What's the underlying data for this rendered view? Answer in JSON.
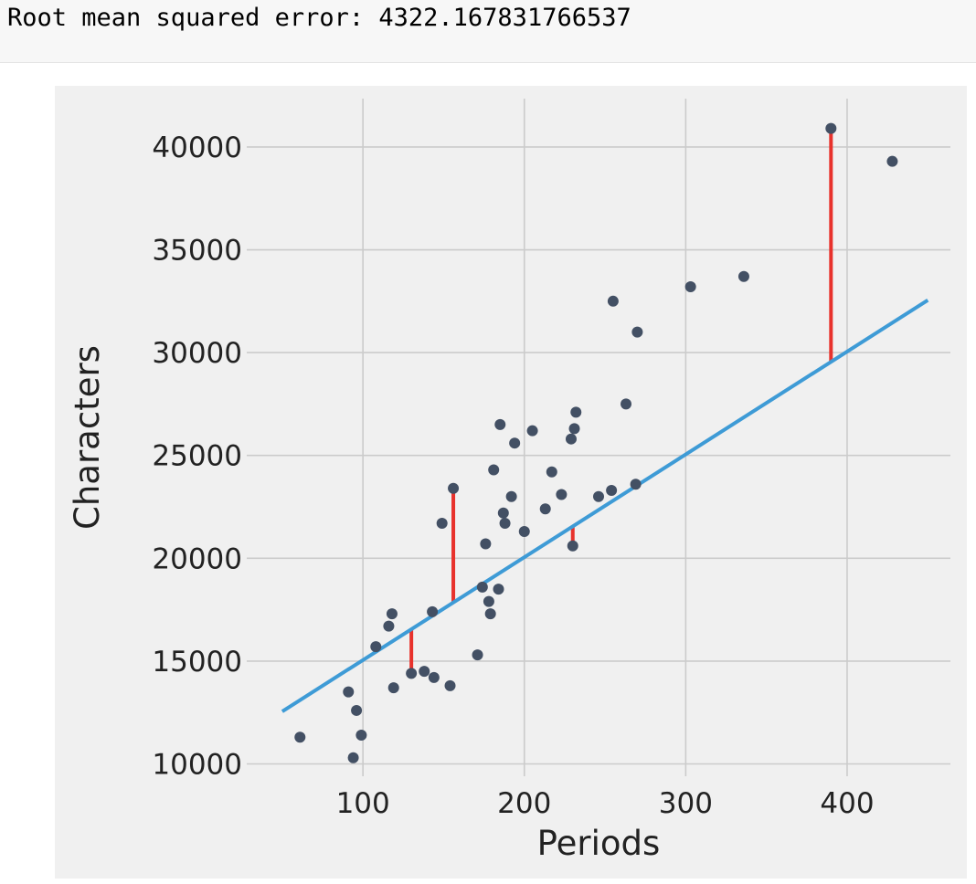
{
  "output": {
    "text": "Root mean squared error: 4322.167831766537"
  },
  "colors": {
    "figure_bg": "#f0f0f0",
    "grid": "#cbcbcb",
    "points": "#435064",
    "fit_line": "#3e9bd6",
    "residuals": "#e8322c"
  },
  "chart_data": {
    "type": "scatter",
    "title": "",
    "xlabel": "Periods",
    "ylabel": "Characters",
    "xlim": [
      28,
      464
    ],
    "ylim": [
      9400,
      42350
    ],
    "grid": true,
    "x_ticks": [
      100,
      200,
      300,
      400
    ],
    "x_tick_labels": [
      "100",
      "200",
      "300",
      "400"
    ],
    "y_ticks": [
      10000,
      15000,
      20000,
      25000,
      30000,
      35000,
      40000
    ],
    "y_tick_labels": [
      "10000",
      "15000",
      "20000",
      "25000",
      "30000",
      "35000",
      "40000"
    ],
    "points": [
      [
        61,
        11300
      ],
      [
        91,
        13500
      ],
      [
        94,
        10300
      ],
      [
        96,
        12600
      ],
      [
        99,
        11400
      ],
      [
        108,
        15700
      ],
      [
        116,
        16700
      ],
      [
        118,
        17300
      ],
      [
        119,
        13700
      ],
      [
        130,
        14400
      ],
      [
        138,
        14500
      ],
      [
        143,
        17400
      ],
      [
        144,
        14200
      ],
      [
        149,
        21700
      ],
      [
        154,
        13800
      ],
      [
        156,
        23400
      ],
      [
        171,
        15300
      ],
      [
        174,
        18600
      ],
      [
        176,
        20700
      ],
      [
        178,
        17900
      ],
      [
        179,
        17300
      ],
      [
        181,
        24300
      ],
      [
        184,
        18500
      ],
      [
        185,
        26500
      ],
      [
        187,
        22200
      ],
      [
        188,
        21700
      ],
      [
        192,
        23000
      ],
      [
        194,
        25600
      ],
      [
        200,
        21300
      ],
      [
        205,
        26200
      ],
      [
        213,
        22400
      ],
      [
        217,
        24200
      ],
      [
        223,
        23100
      ],
      [
        229,
        25800
      ],
      [
        230,
        20600
      ],
      [
        231,
        26300
      ],
      [
        232,
        27100
      ],
      [
        246,
        23000
      ],
      [
        254,
        23300
      ],
      [
        255,
        32500
      ],
      [
        263,
        27500
      ],
      [
        269,
        23600
      ],
      [
        270,
        31000
      ],
      [
        303,
        33200
      ],
      [
        336,
        33700
      ],
      [
        390,
        40900
      ],
      [
        428,
        39300
      ]
    ],
    "fit_line": {
      "x": [
        50,
        450
      ],
      "y": [
        12550,
        32550
      ]
    },
    "residual_segments": [
      {
        "x": 130,
        "y_point": 14400,
        "y_line": 16550
      },
      {
        "x": 156,
        "y_point": 23400,
        "y_line": 17850
      },
      {
        "x": 230,
        "y_point": 20600,
        "y_line": 21550
      },
      {
        "x": 390,
        "y_point": 40900,
        "y_line": 29550
      }
    ]
  }
}
